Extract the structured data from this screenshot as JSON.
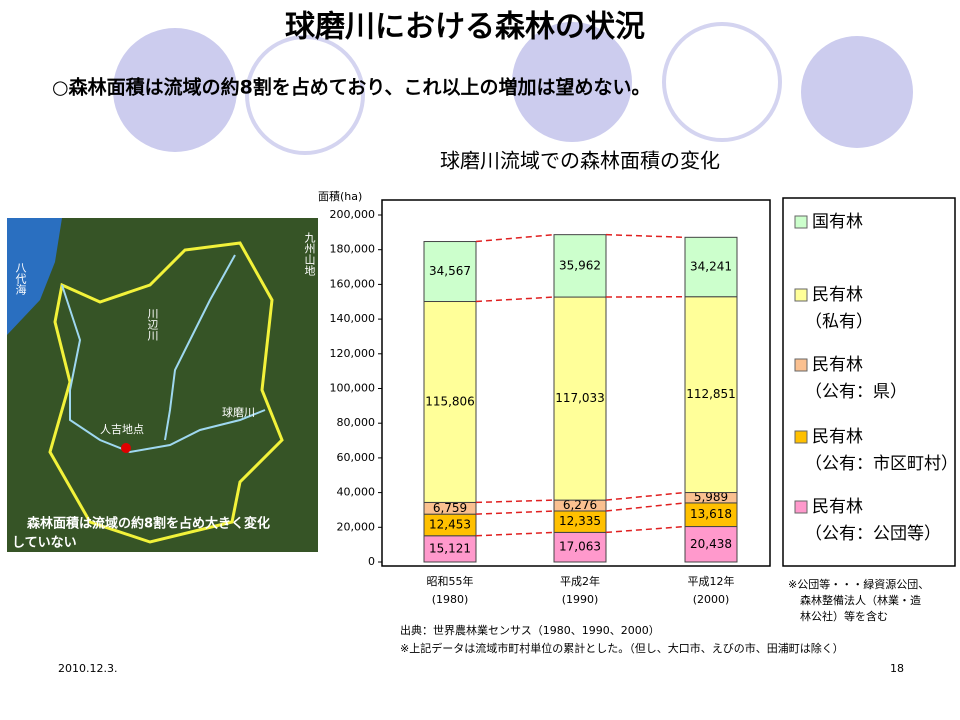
{
  "slide": {
    "title": "球磨川における森林の状況",
    "subtitle": "○森林面積は流域の約8割を占めており、これ以上の増加は望めない。",
    "date": "2010.12.3.",
    "page_number": "18",
    "source": "出典：世界農林業センサス（1980、1990、2000）",
    "data_note": "※上記データは流域市町村単位の累計とした。（但し、大口市、えびの市、田浦町は除く）",
    "footnote": [
      "※公団等・・・緑資源公団、",
      "森林整備法人（林業・造",
      "林公社）等を含む"
    ]
  },
  "map": {
    "sea": "八代海",
    "mountains": "九州山地",
    "kawabe": "川辺川",
    "kuma": "球磨川",
    "point": "人吉地点",
    "caption": [
      "森林面積は流域の約8割を占め大きく変化",
      "していない"
    ]
  },
  "chart_data": {
    "type": "bar",
    "stacked": true,
    "title": "球磨川流域での森林面積の変化",
    "ylabel": "面積(ha)",
    "categories": [
      "昭和55年",
      "平成2年",
      "平成12年"
    ],
    "category_years": [
      "(1980)",
      "(1990)",
      "(2000)"
    ],
    "ylim": [
      0,
      200000
    ],
    "yticks": [
      0,
      {
        "value": 20000,
        "label": "20,000"
      },
      {
        "value": 40000,
        "label": "40,000"
      },
      {
        "value": 60000,
        "label": "60,000"
      },
      {
        "value": 80000,
        "label": "80,000"
      },
      {
        "value": 100000,
        "label": "100,000"
      },
      {
        "value": 120000,
        "label": "120,000"
      },
      {
        "value": 140000,
        "label": "140,000"
      },
      {
        "value": 160000,
        "label": "160,000"
      },
      {
        "value": 180000,
        "label": "180,000"
      },
      {
        "value": 200000,
        "label": "200,000"
      }
    ],
    "series": [
      {
        "name": "民有林",
        "detail": "（公有：公団等）",
        "color": "#ff99cc",
        "values": [
          15121,
          17063,
          20438
        ],
        "value_labels": [
          "15,121",
          "17,063",
          "20,438"
        ]
      },
      {
        "name": "民有林",
        "detail": "（公有：市区町村）",
        "color": "#ffc000",
        "values": [
          12453,
          12335,
          13618
        ],
        "value_labels": [
          "12,453",
          "12,335",
          "13,618"
        ]
      },
      {
        "name": "民有林",
        "detail": "（公有：県）",
        "color": "#fac090",
        "values": [
          6759,
          6276,
          5989
        ],
        "value_labels": [
          "6,759",
          "6,276",
          "5,989"
        ]
      },
      {
        "name": "民有林",
        "detail": "（私有）",
        "color": "#ffff99",
        "values": [
          115806,
          117033,
          112851
        ],
        "value_labels": [
          "115,806",
          "117,033",
          "112,851"
        ]
      },
      {
        "name": "国有林",
        "color": "#ccffcc",
        "values": [
          34567,
          35962,
          34241
        ],
        "value_labels": [
          "34,567",
          "35,962",
          "34,241"
        ]
      }
    ],
    "connector_color": "#e02020"
  }
}
